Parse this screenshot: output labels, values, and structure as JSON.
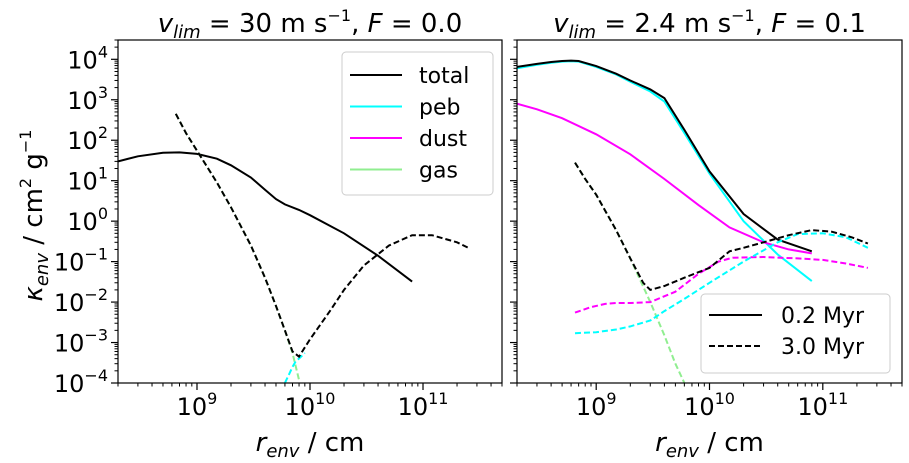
{
  "chart_data": [
    {
      "type": "line",
      "title": "v_lim = 30 m s⁻¹, F = 0.0",
      "title_parts": {
        "sym": "v",
        "sub": "lim",
        "rest1": " = 30 m s",
        "sup": "−1",
        "rest2": ", ",
        "sym2": "F",
        "rest3": " = 0.0"
      },
      "xlabel": "r_env / cm",
      "ylabel": "κ_env / cm² g⁻¹",
      "xscale": "log",
      "yscale": "log",
      "xlim": [
        200000000.0,
        500000000000.0
      ],
      "ylim": [
        0.0001,
        30000.0
      ],
      "x_ticks": [
        {
          "v": 1000000000.0,
          "base": "10",
          "exp": "9"
        },
        {
          "v": 10000000000.0,
          "base": "10",
          "exp": "10"
        },
        {
          "v": 100000000000.0,
          "base": "10",
          "exp": "11"
        }
      ],
      "y_ticks": [
        {
          "v": 0.0001,
          "base": "10",
          "exp": "−4"
        },
        {
          "v": 0.001,
          "base": "10",
          "exp": "−3"
        },
        {
          "v": 0.01,
          "base": "10",
          "exp": "−2"
        },
        {
          "v": 0.1,
          "base": "10",
          "exp": "−1"
        },
        {
          "v": 1,
          "base": "10",
          "exp": "0"
        },
        {
          "v": 10,
          "base": "10",
          "exp": "1"
        },
        {
          "v": 100,
          "base": "10",
          "exp": "2"
        },
        {
          "v": 1000,
          "base": "10",
          "exp": "3"
        },
        {
          "v": 10000,
          "base": "10",
          "exp": "4"
        }
      ],
      "legend": {
        "placement": "top-right",
        "entries": [
          {
            "label": "total",
            "color": "#000000",
            "dash": "solid"
          },
          {
            "label": "peb",
            "color": "#00ffff",
            "dash": "solid"
          },
          {
            "label": "dust",
            "color": "#ff00ff",
            "dash": "solid"
          },
          {
            "label": "gas",
            "color": "#90ee90",
            "dash": "solid"
          }
        ]
      },
      "series": [
        {
          "name": "total",
          "time": "0.2 Myr",
          "color": "#000000",
          "dash": "solid",
          "x": [
            200000000.0,
            300000000.0,
            500000000.0,
            700000000.0,
            1000000000.0,
            1500000000.0,
            2000000000.0,
            3000000000.0,
            4000000000.0,
            5000000000.0,
            6000000000.0,
            8000000000.0,
            10000000000.0,
            20000000000.0,
            40000000000.0,
            80000000000.0
          ],
          "y": [
            30,
            40,
            49,
            50,
            46,
            35,
            24,
            12,
            6,
            3.5,
            2.6,
            1.9,
            1.4,
            0.5,
            0.14,
            0.032
          ]
        },
        {
          "name": "gas",
          "time": "3.0 Myr",
          "color": "#90ee90",
          "dash": "dashed",
          "x": [
            650000000.0,
            800000000.0,
            1000000000.0,
            1500000000.0,
            2000000000.0,
            3000000000.0,
            4000000000.0,
            5000000000.0,
            6000000000.0,
            7000000000.0,
            8000000000.0
          ],
          "y": [
            450,
            150,
            55,
            9,
            2.2,
            0.25,
            0.04,
            0.008,
            0.002,
            0.00055,
            0.00012
          ]
        },
        {
          "name": "peb",
          "time": "3.0 Myr",
          "color": "#00ffff",
          "dash": "dashed",
          "x": [
            6000000000.0,
            6500000000.0,
            7000000000.0,
            7500000000.0,
            8000000000.0,
            9000000000.0
          ],
          "y": [
            0.0001,
            0.00016,
            0.00025,
            0.00035,
            0.0004,
            0.00055
          ]
        },
        {
          "name": "total",
          "time": "3.0 Myr",
          "color": "#000000",
          "dash": "dashed",
          "x": [
            650000000.0,
            800000000.0,
            1000000000.0,
            1500000000.0,
            2000000000.0,
            3000000000.0,
            4000000000.0,
            5000000000.0,
            6000000000.0,
            7000000000.0,
            8000000000.0,
            10000000000.0,
            15000000000.0,
            20000000000.0,
            30000000000.0,
            50000000000.0,
            80000000000.0,
            120000000000.0,
            200000000000.0,
            260000000000.0
          ],
          "y": [
            450,
            150,
            55,
            9,
            2.2,
            0.25,
            0.04,
            0.008,
            0.002,
            0.0006,
            0.00045,
            0.0012,
            0.006,
            0.02,
            0.08,
            0.25,
            0.45,
            0.45,
            0.3,
            0.21
          ]
        }
      ]
    },
    {
      "type": "line",
      "title": "v_lim = 2.4 m s⁻¹, F = 0.1",
      "title_parts": {
        "sym": "v",
        "sub": "lim",
        "rest1": " = 2.4 m s",
        "sup": "−1",
        "rest2": ", ",
        "sym2": "F",
        "rest3": " = 0.1"
      },
      "xlabel": "r_env / cm",
      "xscale": "log",
      "yscale": "log",
      "xlim": [
        200000000.0,
        500000000000.0
      ],
      "ylim": [
        0.0001,
        30000.0
      ],
      "x_ticks": [
        {
          "v": 1000000000.0,
          "base": "10",
          "exp": "9"
        },
        {
          "v": 10000000000.0,
          "base": "10",
          "exp": "10"
        },
        {
          "v": 100000000000.0,
          "base": "10",
          "exp": "11"
        }
      ],
      "legend": {
        "placement": "bottom-right",
        "entries": [
          {
            "label": "0.2 Myr",
            "color": "#000000",
            "dash": "solid"
          },
          {
            "label": "3.0 Myr",
            "color": "#000000",
            "dash": "dashed"
          }
        ]
      },
      "series": [
        {
          "name": "peb",
          "time": "0.2 Myr",
          "color": "#00ffff",
          "dash": "solid",
          "x": [
            200000000.0,
            300000000.0,
            400000000.0,
            500000000.0,
            600000000.0,
            700000000.0,
            1000000000.0,
            1500000000.0,
            2000000000.0,
            3000000000.0,
            4000000000.0,
            6000000000.0,
            10000000000.0,
            20000000000.0,
            40000000000.0,
            80000000000.0
          ],
          "y": [
            6000,
            7300,
            8200,
            8800,
            9000,
            8800,
            6500,
            4200,
            2800,
            1600,
            900,
            150,
            15,
            1.0,
            0.15,
            0.033
          ]
        },
        {
          "name": "dust",
          "time": "0.2 Myr",
          "color": "#ff00ff",
          "dash": "solid",
          "x": [
            200000000.0,
            300000000.0,
            500000000.0,
            1000000000.0,
            2000000000.0,
            4000000000.0,
            8000000000.0,
            15000000000.0,
            30000000000.0,
            50000000000.0,
            80000000000.0
          ],
          "y": [
            800,
            580,
            350,
            140,
            45,
            11,
            2.5,
            0.7,
            0.3,
            0.2,
            0.16
          ]
        },
        {
          "name": "total",
          "time": "0.2 Myr",
          "color": "#000000",
          "dash": "solid",
          "x": [
            200000000.0,
            300000000.0,
            400000000.0,
            500000000.0,
            600000000.0,
            700000000.0,
            1000000000.0,
            1500000000.0,
            2000000000.0,
            3000000000.0,
            4000000000.0,
            6000000000.0,
            10000000000.0,
            20000000000.0,
            40000000000.0,
            80000000000.0
          ],
          "y": [
            6500,
            7700,
            8600,
            9100,
            9300,
            9100,
            6800,
            4400,
            3000,
            1800,
            1100,
            180,
            17,
            1.5,
            0.35,
            0.18
          ]
        },
        {
          "name": "gas",
          "time": "3.0 Myr",
          "color": "#90ee90",
          "dash": "dashed",
          "x": [
            650000000.0,
            800000000.0,
            1000000000.0,
            1500000000.0,
            2000000000.0,
            3000000000.0,
            4000000000.0,
            5000000000.0,
            6000000000.0
          ],
          "y": [
            28,
            11,
            4.5,
            0.6,
            0.12,
            0.01,
            0.0015,
            0.0003,
            0.0001
          ]
        },
        {
          "name": "dust",
          "time": "3.0 Myr",
          "color": "#ff00ff",
          "dash": "dashed",
          "x": [
            650000000.0,
            900000000.0,
            1200000000.0,
            1500000000.0,
            2000000000.0,
            3000000000.0,
            5000000000.0,
            8000000000.0,
            12000000000.0,
            16000000000.0,
            30000000000.0,
            60000000000.0,
            100000000000.0,
            160000000000.0,
            250000000000.0
          ],
          "y": [
            0.0055,
            0.0075,
            0.009,
            0.0095,
            0.0095,
            0.01,
            0.018,
            0.05,
            0.1,
            0.125,
            0.13,
            0.12,
            0.11,
            0.09,
            0.07
          ]
        },
        {
          "name": "peb",
          "time": "3.0 Myr",
          "color": "#00ffff",
          "dash": "dashed",
          "x": [
            650000000.0,
            1000000000.0,
            1500000000.0,
            2000000000.0,
            3000000000.0,
            4000000000.0,
            6000000000.0,
            10000000000.0,
            20000000000.0,
            40000000000.0,
            60000000000.0,
            100000000000.0,
            160000000000.0,
            250000000000.0
          ],
          "y": [
            0.0017,
            0.0018,
            0.0021,
            0.0025,
            0.0035,
            0.006,
            0.012,
            0.03,
            0.1,
            0.3,
            0.48,
            0.5,
            0.4,
            0.22
          ]
        },
        {
          "name": "total",
          "time": "3.0 Myr",
          "color": "#000000",
          "dash": "dashed",
          "x": [
            650000000.0,
            800000000.0,
            1000000000.0,
            1500000000.0,
            2000000000.0,
            2600000000.0,
            3000000000.0,
            4000000000.0,
            6000000000.0,
            10000000000.0,
            15000000000.0,
            20000000000.0,
            30000000000.0,
            50000000000.0,
            80000000000.0,
            120000000000.0,
            180000000000.0,
            250000000000.0
          ],
          "y": [
            28,
            11,
            4.5,
            0.6,
            0.12,
            0.03,
            0.02,
            0.025,
            0.04,
            0.07,
            0.18,
            0.22,
            0.3,
            0.45,
            0.6,
            0.55,
            0.4,
            0.28
          ]
        }
      ]
    }
  ]
}
